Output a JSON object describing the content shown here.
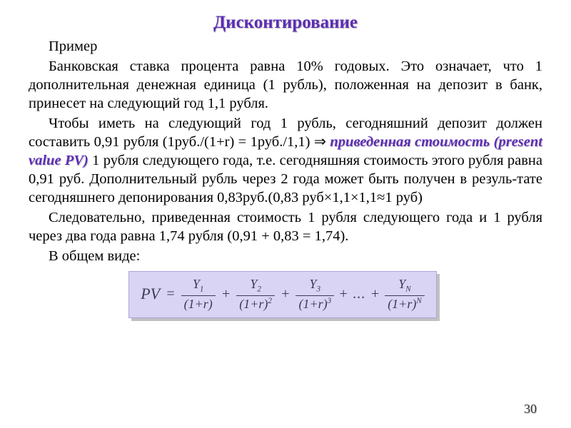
{
  "title": "Дисконтирование",
  "para_example_label": "Пример",
  "para1": "Банковская ставка процента равна 10% годовых. Это означает, что 1 дополнительная денежная единица (1 рубль), положенная на депозит в банк, принесет на следующий год 1,1 рубля.",
  "para2_pre": "Чтобы иметь на следующий год 1 рубль, сегодняшний депозит должен составить 0,91 рубля (1руб./(1+r) = 1руб./1,1) ⇒ ",
  "term": "приведенная стоимость (present value PV)",
  "para2_post": " 1 рубля следующего года, т.е. сегодняшняя стоимость этого рубля равна 0,91 руб. Дополнительный рубль через 2 года может быть получен в резуль-тате сегодняшнего депонирования 0,83руб.(0,83 руб×1,1×1,1≈1 руб)",
  "para3": "Следовательно, приведенная стоимость 1 рубля следующего года и 1 рубля через два года равна 1,74 рубля (0,91 + 0,83 = 1,74).",
  "para4": "В общем виде:",
  "formula": {
    "label": "PV",
    "terms": [
      {
        "num": "Y",
        "num_sub": "1",
        "den": "(1+r)",
        "den_sup": ""
      },
      {
        "num": "Y",
        "num_sub": "2",
        "den": "(1+r)",
        "den_sup": "2"
      },
      {
        "num": "Y",
        "num_sub": "3",
        "den": "(1+r)",
        "den_sup": "3"
      },
      {
        "num": "Y",
        "num_sub": "N",
        "den": "(1+r)",
        "den_sup": "N"
      }
    ],
    "sep": "+",
    "dots": "+ ... +",
    "bg": "#d9d4f3",
    "border": "#afa4df",
    "text_color": "#3a3a55"
  },
  "page_number": "30",
  "colors": {
    "title": "#5c2db5",
    "term": "#5c2db5",
    "bg": "#ffffff"
  }
}
